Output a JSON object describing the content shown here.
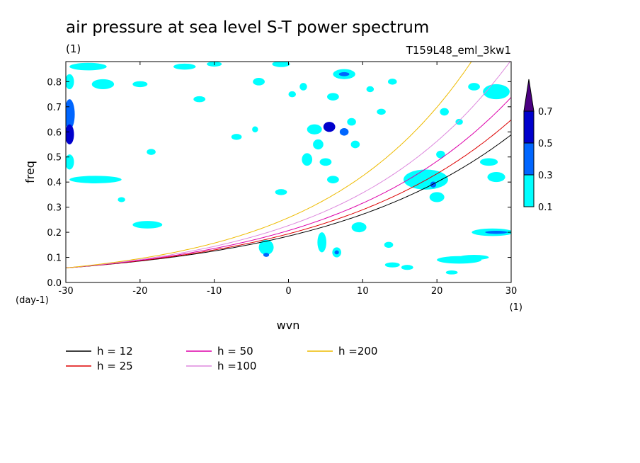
{
  "chart_data": {
    "type": "contour",
    "title": "air pressure at sea level S-T power spectrum",
    "subtitle_left": "(1)",
    "subtitle_right": "T159L48_eml_3kw1",
    "xlabel": "wvn",
    "ylabel": "freq",
    "x_unit": "(1)",
    "y_unit": "(day-1)",
    "xlim": [
      -30,
      30
    ],
    "ylim": [
      0,
      0.88
    ],
    "x_ticks": [
      -30,
      -20,
      -10,
      0,
      10,
      20,
      30
    ],
    "x_tick_labels": [
      "-30",
      "-20",
      "-10",
      "0",
      "10",
      "20",
      "30"
    ],
    "y_ticks": [
      0,
      0.1,
      0.2,
      0.3,
      0.4,
      0.5,
      0.6,
      0.7,
      0.8
    ],
    "y_tick_labels": [
      "0.0",
      "0.1",
      "0.2",
      "0.3",
      "0.4",
      "0.5",
      "0.6",
      "0.7",
      "0.8"
    ],
    "colorbar": {
      "levels": [
        0.1,
        0.3,
        0.5,
        0.7
      ],
      "labels": [
        "0.1",
        "0.3",
        "0.5",
        "0.7"
      ],
      "colors": [
        "#00ffff",
        "#0066ff",
        "#0000cc",
        "#4b0082"
      ]
    },
    "patches": [
      {
        "x": -29.5,
        "y": 0.8,
        "rx": 0.6,
        "ry": 0.03,
        "level": 0
      },
      {
        "x": -29.5,
        "y": 0.67,
        "rx": 0.7,
        "ry": 0.06,
        "level": 1
      },
      {
        "x": -29.5,
        "y": 0.59,
        "rx": 0.6,
        "ry": 0.04,
        "level": 2
      },
      {
        "x": -29.5,
        "y": 0.48,
        "rx": 0.6,
        "ry": 0.03,
        "level": 0
      },
      {
        "x": -27,
        "y": 0.86,
        "rx": 2.5,
        "ry": 0.015,
        "level": 0
      },
      {
        "x": -25,
        "y": 0.79,
        "rx": 1.5,
        "ry": 0.02,
        "level": 0
      },
      {
        "x": -20,
        "y": 0.79,
        "rx": 1.0,
        "ry": 0.012,
        "level": 0
      },
      {
        "x": -14,
        "y": 0.86,
        "rx": 1.5,
        "ry": 0.012,
        "level": 0
      },
      {
        "x": -10,
        "y": 0.87,
        "rx": 1.0,
        "ry": 0.01,
        "level": 0
      },
      {
        "x": -4,
        "y": 0.8,
        "rx": 0.8,
        "ry": 0.015,
        "level": 0
      },
      {
        "x": -1,
        "y": 0.87,
        "rx": 1.2,
        "ry": 0.012,
        "level": 0
      },
      {
        "x": -26,
        "y": 0.41,
        "rx": 3.5,
        "ry": 0.015,
        "level": 0
      },
      {
        "x": -19,
        "y": 0.23,
        "rx": 2.0,
        "ry": 0.015,
        "level": 0
      },
      {
        "x": -18.5,
        "y": 0.52,
        "rx": 0.6,
        "ry": 0.012,
        "level": 0
      },
      {
        "x": -22.5,
        "y": 0.33,
        "rx": 0.5,
        "ry": 0.01,
        "level": 0
      },
      {
        "x": -12,
        "y": 0.73,
        "rx": 0.8,
        "ry": 0.012,
        "level": 0
      },
      {
        "x": -7,
        "y": 0.58,
        "rx": 0.7,
        "ry": 0.012,
        "level": 0
      },
      {
        "x": -4.5,
        "y": 0.61,
        "rx": 0.4,
        "ry": 0.012,
        "level": 0
      },
      {
        "x": -3,
        "y": 0.14,
        "rx": 1.0,
        "ry": 0.03,
        "level": 0
      },
      {
        "x": -3,
        "y": 0.11,
        "rx": 0.4,
        "ry": 0.008,
        "level": 1
      },
      {
        "x": -1,
        "y": 0.36,
        "rx": 0.8,
        "ry": 0.012,
        "level": 0
      },
      {
        "x": 0.5,
        "y": 0.75,
        "rx": 0.5,
        "ry": 0.012,
        "level": 0
      },
      {
        "x": 2,
        "y": 0.78,
        "rx": 0.5,
        "ry": 0.015,
        "level": 0
      },
      {
        "x": 2.5,
        "y": 0.49,
        "rx": 0.7,
        "ry": 0.025,
        "level": 0
      },
      {
        "x": 3.5,
        "y": 0.61,
        "rx": 1.0,
        "ry": 0.02,
        "level": 0
      },
      {
        "x": 4,
        "y": 0.55,
        "rx": 0.7,
        "ry": 0.02,
        "level": 0
      },
      {
        "x": 5.5,
        "y": 0.62,
        "rx": 0.8,
        "ry": 0.02,
        "level": 2
      },
      {
        "x": 7.5,
        "y": 0.6,
        "rx": 0.6,
        "ry": 0.015,
        "level": 1
      },
      {
        "x": 6,
        "y": 0.74,
        "rx": 0.8,
        "ry": 0.015,
        "level": 0
      },
      {
        "x": 7.5,
        "y": 0.83,
        "rx": 1.5,
        "ry": 0.02,
        "level": 0
      },
      {
        "x": 7.5,
        "y": 0.83,
        "rx": 0.7,
        "ry": 0.008,
        "level": 1
      },
      {
        "x": 5,
        "y": 0.48,
        "rx": 0.8,
        "ry": 0.015,
        "level": 0
      },
      {
        "x": 6,
        "y": 0.41,
        "rx": 0.8,
        "ry": 0.015,
        "level": 0
      },
      {
        "x": 4.5,
        "y": 0.16,
        "rx": 0.6,
        "ry": 0.04,
        "level": 0
      },
      {
        "x": 6.5,
        "y": 0.12,
        "rx": 0.6,
        "ry": 0.02,
        "level": 0
      },
      {
        "x": 6.5,
        "y": 0.12,
        "rx": 0.3,
        "ry": 0.008,
        "level": 1
      },
      {
        "x": 8.5,
        "y": 0.64,
        "rx": 0.6,
        "ry": 0.015,
        "level": 0
      },
      {
        "x": 9,
        "y": 0.55,
        "rx": 0.6,
        "ry": 0.015,
        "level": 0
      },
      {
        "x": 9.5,
        "y": 0.22,
        "rx": 1.0,
        "ry": 0.02,
        "level": 0
      },
      {
        "x": 11,
        "y": 0.77,
        "rx": 0.5,
        "ry": 0.012,
        "level": 0
      },
      {
        "x": 12.5,
        "y": 0.68,
        "rx": 0.6,
        "ry": 0.012,
        "level": 0
      },
      {
        "x": 14,
        "y": 0.8,
        "rx": 0.6,
        "ry": 0.012,
        "level": 0
      },
      {
        "x": 13.5,
        "y": 0.15,
        "rx": 0.6,
        "ry": 0.012,
        "level": 0
      },
      {
        "x": 16,
        "y": 0.06,
        "rx": 0.8,
        "ry": 0.01,
        "level": 0
      },
      {
        "x": 18.5,
        "y": 0.41,
        "rx": 3.0,
        "ry": 0.04,
        "level": 0
      },
      {
        "x": 19.5,
        "y": 0.39,
        "rx": 0.4,
        "ry": 0.012,
        "level": 1
      },
      {
        "x": 20,
        "y": 0.34,
        "rx": 1.0,
        "ry": 0.02,
        "level": 0
      },
      {
        "x": 20.5,
        "y": 0.51,
        "rx": 0.6,
        "ry": 0.015,
        "level": 0
      },
      {
        "x": 21,
        "y": 0.68,
        "rx": 0.6,
        "ry": 0.015,
        "level": 0
      },
      {
        "x": 23,
        "y": 0.64,
        "rx": 0.5,
        "ry": 0.012,
        "level": 0
      },
      {
        "x": 25,
        "y": 0.78,
        "rx": 0.8,
        "ry": 0.015,
        "level": 0
      },
      {
        "x": 27,
        "y": 0.48,
        "rx": 1.2,
        "ry": 0.015,
        "level": 0
      },
      {
        "x": 28,
        "y": 0.42,
        "rx": 1.2,
        "ry": 0.02,
        "level": 0
      },
      {
        "x": 28,
        "y": 0.76,
        "rx": 1.8,
        "ry": 0.03,
        "level": 0
      },
      {
        "x": 27.5,
        "y": 0.2,
        "rx": 2.8,
        "ry": 0.015,
        "level": 0
      },
      {
        "x": 28,
        "y": 0.2,
        "rx": 1.5,
        "ry": 0.006,
        "level": 1
      },
      {
        "x": 23,
        "y": 0.09,
        "rx": 3.0,
        "ry": 0.015,
        "level": 0
      },
      {
        "x": 25,
        "y": 0.1,
        "rx": 2.0,
        "ry": 0.01,
        "level": 0
      },
      {
        "x": 14,
        "y": 0.07,
        "rx": 1.0,
        "ry": 0.01,
        "level": 0
      },
      {
        "x": 22,
        "y": 0.04,
        "rx": 0.8,
        "ry": 0.008,
        "level": 0
      }
    ],
    "series": [
      {
        "name": "h = 12",
        "h": 12,
        "color": "#000000"
      },
      {
        "name": "h = 25",
        "h": 25,
        "color": "#dd0000"
      },
      {
        "name": "h = 50",
        "h": 50,
        "color": "#dd00aa"
      },
      {
        "name": "h =100",
        "h": 100,
        "color": "#dd88dd"
      },
      {
        "name": "h =200",
        "h": 200,
        "color": "#eebb00"
      }
    ]
  }
}
